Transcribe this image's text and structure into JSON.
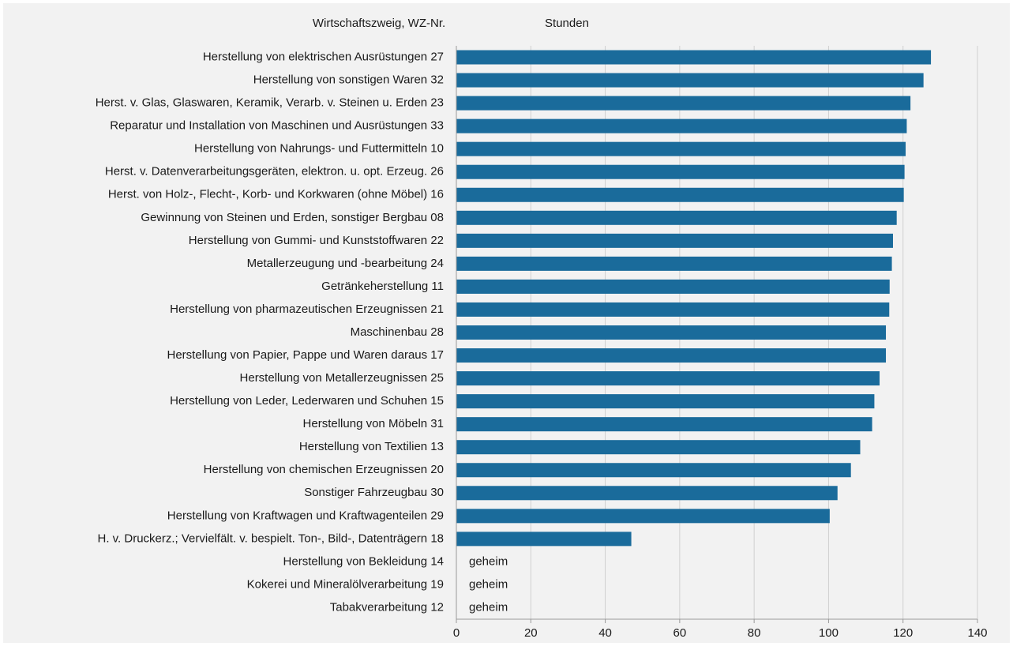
{
  "chart_data": {
    "type": "hbar",
    "category_header": "Wirtschaftszweig, WZ-Nr.",
    "value_header": "Stunden",
    "categories": [
      "Herstellung von elektrischen Ausrüstungen  27",
      "Herstellung von sonstigen Waren  32",
      "Herst. v. Glas, Glaswaren, Keramik, Verarb. v. Steinen u. Erden 23",
      "Reparatur und Installation von Maschinen und Ausrüstungen 33",
      "Herstellung von Nahrungs- und Futtermitteln  10",
      "Herst. v. Datenverarbeitungsgeräten, elektron. u. opt. Erzeug. 26",
      "Herst. von Holz-, Flecht-, Korb- und Korkwaren (ohne Möbel) 16",
      "Gewinnung von Steinen und Erden, sonstiger Bergbau 08",
      "Herstellung von Gummi- und Kunststoffwaren  22",
      "Metallerzeugung und  -bearbeitung  24",
      "Getränkeherstellung  11",
      "Herstellung von pharmazeutischen Erzeugnissen 21",
      "Maschinenbau  28",
      "Herstellung von Papier, Pappe und Waren daraus 17",
      "Herstellung von Metallerzeugnissen  25",
      "Herstellung von Leder, Lederwaren und Schuhen 15",
      "Herstellung von Möbeln  31",
      "Herstellung von Textilien  13",
      "Herstellung von chemischen Erzeugnissen  20",
      "Sonstiger Fahrzeugbau  30",
      "Herstellung von Kraftwagen und Kraftwagenteilen 29",
      "H. v. Druckerz.; Vervielfält. v. bespielt. Ton-, Bild-, Datenträgern  18",
      "Herstellung von Bekleidung  14",
      "Kokerei und Mineralölverarbeitung  19",
      "Tabakverarbeitung  12"
    ],
    "values": [
      127.5,
      125.5,
      122,
      121,
      120.7,
      120.4,
      120.2,
      118.3,
      117.3,
      117,
      116.4,
      116.3,
      115.4,
      115.4,
      113.7,
      112.3,
      111.7,
      108.5,
      106,
      102.4,
      100.3,
      47,
      null,
      null,
      null
    ],
    "value_labels": [
      null,
      null,
      null,
      null,
      null,
      null,
      null,
      null,
      null,
      null,
      null,
      null,
      null,
      null,
      null,
      null,
      null,
      null,
      null,
      null,
      null,
      null,
      "geheim",
      "geheim",
      "geheim"
    ],
    "color": "#1a6b9b",
    "xlim": [
      0,
      140
    ],
    "xticks": [
      0,
      20,
      40,
      60,
      80,
      100,
      120,
      140
    ],
    "grid": true
  }
}
